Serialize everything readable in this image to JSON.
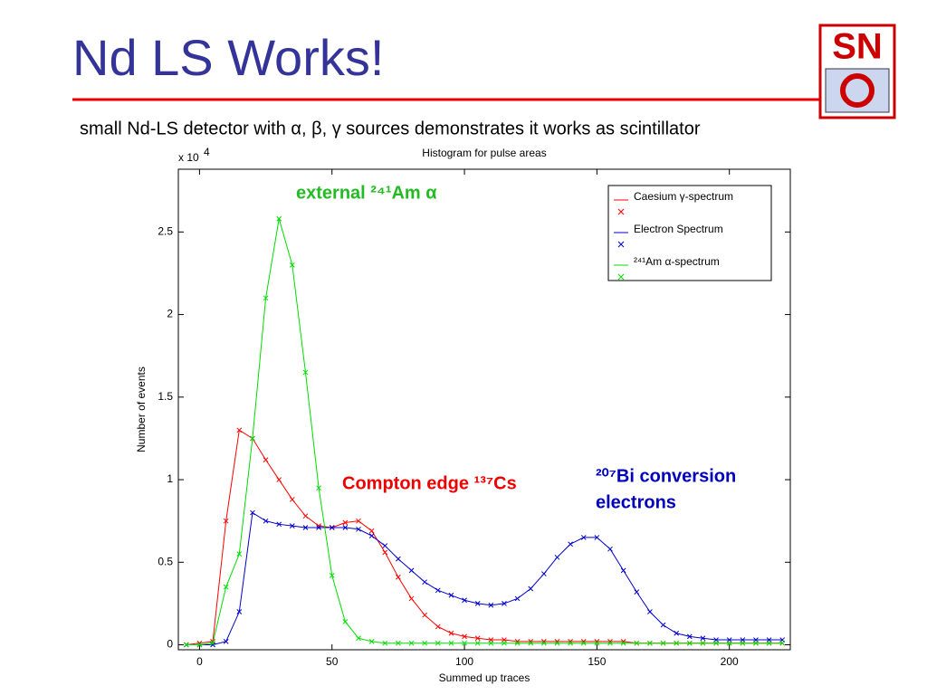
{
  "slide": {
    "title": "Nd LS Works!",
    "subtitle": "small Nd-LS detector with α, β, γ sources demonstrates it works as scintillator",
    "logo": "SN"
  },
  "chart_data": {
    "type": "line",
    "title": "Histogram for pulse areas",
    "xlabel": "Summed up traces",
    "ylabel": "Number of events",
    "y_multiplier": "x 10",
    "y_multiplier_exponent": "4",
    "xlim": [
      -8,
      223
    ],
    "xticks": [
      0,
      50,
      100,
      150,
      200
    ],
    "ylim": [
      -0.03,
      2.88
    ],
    "yticks": [
      0,
      0.5,
      1,
      1.5,
      2,
      2.5
    ],
    "grid": false,
    "legend": "northeast",
    "markers": "x",
    "x": [
      -5,
      0,
      5,
      10,
      15,
      20,
      25,
      30,
      35,
      40,
      45,
      50,
      55,
      60,
      65,
      70,
      75,
      80,
      85,
      90,
      95,
      100,
      105,
      110,
      115,
      120,
      125,
      130,
      135,
      140,
      145,
      150,
      155,
      160,
      165,
      170,
      175,
      180,
      185,
      190,
      195,
      200,
      205,
      210,
      215,
      220
    ],
    "series": [
      {
        "name": "Caesium γ-spectrum",
        "color": "#ff0000",
        "values": [
          0,
          0.01,
          0.02,
          0.75,
          1.3,
          1.25,
          1.12,
          1.0,
          0.88,
          0.78,
          0.72,
          0.71,
          0.74,
          0.75,
          0.69,
          0.56,
          0.41,
          0.28,
          0.18,
          0.11,
          0.07,
          0.05,
          0.04,
          0.03,
          0.03,
          0.02,
          0.02,
          0.02,
          0.02,
          0.02,
          0.02,
          0.02,
          0.02,
          0.02,
          0.01,
          0.01,
          0.01,
          0.01,
          0.01,
          0.01,
          0.01,
          0.01,
          0.01,
          0.01,
          0.01,
          0.01
        ]
      },
      {
        "name": "Electron Spectrum",
        "color": "#0000cc",
        "values": [
          0,
          0,
          0,
          0.02,
          0.2,
          0.8,
          0.75,
          0.73,
          0.72,
          0.71,
          0.71,
          0.71,
          0.71,
          0.7,
          0.66,
          0.6,
          0.52,
          0.45,
          0.38,
          0.33,
          0.3,
          0.27,
          0.25,
          0.24,
          0.25,
          0.28,
          0.34,
          0.43,
          0.53,
          0.61,
          0.65,
          0.65,
          0.58,
          0.45,
          0.32,
          0.2,
          0.12,
          0.07,
          0.05,
          0.04,
          0.03,
          0.03,
          0.03,
          0.03,
          0.03,
          0.03
        ]
      },
      {
        "name": "²⁴¹Am α-spectrum",
        "color": "#00dd00",
        "values": [
          0,
          0,
          0.01,
          0.35,
          0.55,
          1.25,
          2.1,
          2.58,
          2.3,
          1.65,
          0.95,
          0.42,
          0.14,
          0.04,
          0.02,
          0.01,
          0.01,
          0.01,
          0.01,
          0.01,
          0.01,
          0.01,
          0.01,
          0.01,
          0.01,
          0.01,
          0.01,
          0.01,
          0.01,
          0.01,
          0.01,
          0.01,
          0.01,
          0.01,
          0.01,
          0.01,
          0.01,
          0.01,
          0.01,
          0.01,
          0.01,
          0.01,
          0.01,
          0.01,
          0.01,
          0.01
        ]
      }
    ],
    "annotations": [
      {
        "lines": [
          "external ²⁴¹Am α"
        ],
        "color": "#22bb22"
      },
      {
        "lines": [
          "Compton edge ¹³⁷Cs"
        ],
        "color": "#ee0000"
      },
      {
        "lines": [
          "²⁰⁷Bi conversion",
          "electrons"
        ],
        "color": "#0000bb"
      }
    ]
  }
}
